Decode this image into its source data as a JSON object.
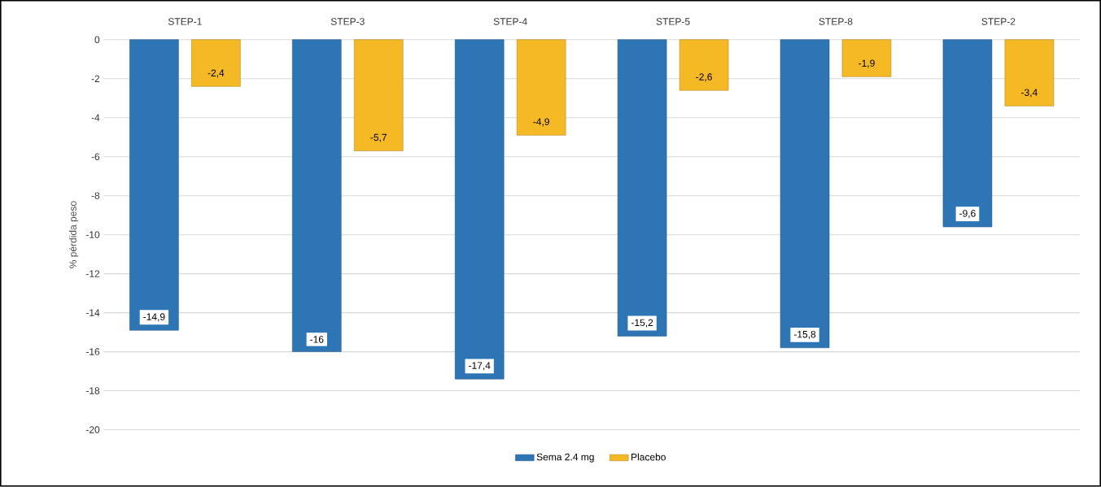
{
  "chart_data": {
    "type": "bar",
    "ylabel": "% pérdida peso",
    "categories": [
      "STEP-1",
      "STEP-3",
      "STEP-4",
      "STEP-5",
      "STEP-8",
      "STEP-2"
    ],
    "series": [
      {
        "name": "Sema 2.4 mg",
        "color": "#2e75b6",
        "values": [
          -14.9,
          -16,
          -17.4,
          -15.2,
          -15.8,
          -9.6
        ],
        "value_labels": [
          "-14,9",
          "-16",
          "-17,4",
          "-15,2",
          "-15,8",
          "-9,6"
        ]
      },
      {
        "name": "Placebo",
        "color": "#f6b926",
        "values": [
          -2.4,
          -5.7,
          -4.9,
          -2.6,
          -1.9,
          -3.4
        ],
        "value_labels": [
          "-2,4",
          "-5,7",
          "-4,9",
          "-2,6",
          "-1,9",
          "-3,4"
        ]
      }
    ],
    "ylim": [
      -20,
      0
    ],
    "yticks": [
      0,
      -2,
      -4,
      -6,
      -8,
      -10,
      -12,
      -14,
      -16,
      -18,
      -20
    ],
    "grid": "y",
    "legend": "bottom"
  }
}
